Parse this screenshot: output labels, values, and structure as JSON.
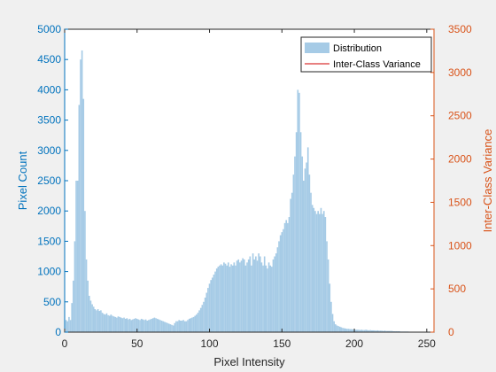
{
  "chart_data": {
    "type": "bar",
    "title": "",
    "xlabel": "Pixel Intensity",
    "ylabel_left": "Pixel Count",
    "ylabel_right": "Inter-Class Variance",
    "xlim": [
      0,
      255
    ],
    "ylim_left": [
      0,
      5000
    ],
    "ylim_right": [
      0,
      3500
    ],
    "xticks": [
      "0",
      "50",
      "100",
      "150",
      "200",
      "250"
    ],
    "yticks_left": [
      "0",
      "500",
      "1000",
      "1500",
      "2000",
      "2500",
      "3000",
      "3500",
      "4000",
      "4500",
      "5000"
    ],
    "yticks_right": [
      "0",
      "500",
      "1000",
      "1500",
      "2000",
      "2500",
      "3000",
      "3500"
    ],
    "legend_position": "top-right",
    "grid": false,
    "colors": {
      "distribution": "#a6cbe6",
      "left_axis": "#0072bd",
      "right_axis": "#d95319",
      "variance_line": "#d00000",
      "box": "#262626"
    },
    "series": [
      {
        "name": "Distribution",
        "type": "bar",
        "x_start": 0,
        "values": [
          0,
          200,
          180,
          250,
          200,
          480,
          850,
          1500,
          2500,
          2500,
          3750,
          4500,
          4650,
          3850,
          2000,
          1200,
          850,
          600,
          520,
          460,
          420,
          380,
          360,
          380,
          350,
          360,
          320,
          300,
          290,
          310,
          280,
          270,
          290,
          270,
          260,
          250,
          240,
          260,
          250,
          240,
          230,
          240,
          220,
          230,
          210,
          220,
          200,
          210,
          220,
          230,
          220,
          210,
          200,
          220,
          210,
          200,
          210,
          190,
          200,
          210,
          220,
          230,
          240,
          230,
          220,
          210,
          200,
          190,
          180,
          170,
          160,
          150,
          140,
          130,
          120,
          110,
          150,
          180,
          180,
          200,
          190,
          190,
          200,
          180,
          180,
          200,
          220,
          230,
          240,
          250,
          270,
          290,
          320,
          360,
          400,
          450,
          500,
          570,
          650,
          730,
          800,
          860,
          900,
          950,
          1000,
          1050,
          1080,
          1100,
          1120,
          1100,
          1150,
          1130,
          1100,
          1150,
          1080,
          1120,
          1100,
          1150,
          1100,
          1180,
          1200,
          1150,
          1180,
          1220,
          1200,
          1100,
          1150,
          1200,
          1250,
          1100,
          1300,
          1200,
          1250,
          1180,
          1300,
          1250,
          1150,
          1100,
          1250,
          1100,
          1050,
          1150,
          1100,
          1080,
          1200,
          1250,
          1300,
          1400,
          1500,
          1600,
          1650,
          1700,
          1800,
          1850,
          1800,
          1900,
          2200,
          2300,
          2600,
          2900,
          3300,
          4000,
          3950,
          3300,
          2900,
          2500,
          2700,
          2800,
          3050,
          2600,
          2300,
          2100,
          2050,
          2000,
          1950,
          2000,
          1950,
          2050,
          1950,
          2000,
          1900,
          1500,
          1200,
          800,
          500,
          300,
          180,
          130,
          110,
          100,
          90,
          80,
          70,
          65,
          60,
          55,
          55,
          50,
          50,
          45,
          45,
          40,
          40,
          40,
          35,
          40,
          35,
          35,
          40,
          35,
          30,
          35,
          30,
          30,
          30,
          25,
          30,
          25,
          25,
          25,
          20,
          25,
          20,
          20,
          20,
          20,
          20,
          15,
          15,
          15,
          15,
          15,
          10,
          10,
          10,
          10,
          10,
          10,
          5,
          5,
          5,
          5,
          5,
          5,
          5,
          0,
          0,
          0,
          0,
          0,
          0,
          0,
          0,
          0
        ]
      },
      {
        "name": "Inter-Class Variance",
        "type": "line",
        "values": []
      }
    ]
  }
}
